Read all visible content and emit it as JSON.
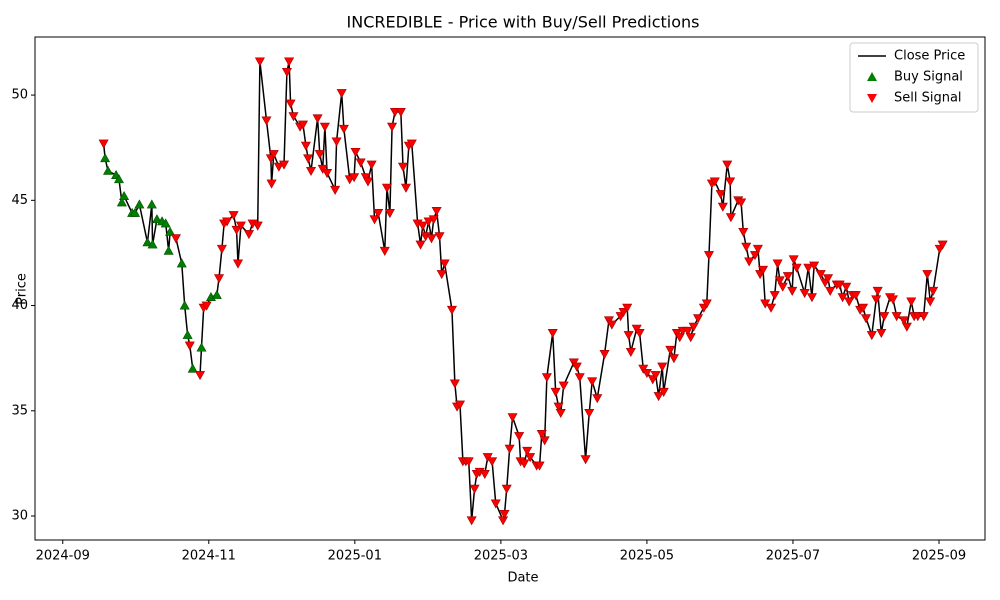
{
  "chart_data": {
    "type": "line",
    "title": "INCREDIBLE - Price with Buy/Sell Predictions",
    "x_label": "Date",
    "y_label": "Price",
    "xlim": [
      -0.38,
      12.63
    ],
    "ylim": [
      28.86,
      52.76
    ],
    "xticks": [
      {
        "value": 0,
        "label": "2024-09"
      },
      {
        "value": 2,
        "label": "2024-11"
      },
      {
        "value": 4,
        "label": "2025-01"
      },
      {
        "value": 6,
        "label": "2025-03"
      },
      {
        "value": 8,
        "label": "2025-05"
      },
      {
        "value": 10,
        "label": "2025-07"
      },
      {
        "value": 12,
        "label": "2025-09"
      }
    ],
    "yticks": [
      30,
      35,
      40,
      45,
      50
    ],
    "grid": false,
    "legend": "upper right",
    "series": [
      {
        "name": "Close Price",
        "color": "#000000",
        "marker": "none",
        "x": [
          0.56,
          0.58,
          0.62,
          0.73,
          0.77,
          0.81,
          0.84,
          0.95,
          0.99,
          1.05,
          1.16,
          1.22,
          1.23,
          1.29,
          1.36,
          1.41,
          1.45,
          1.47,
          1.55,
          1.63,
          1.67,
          1.71,
          1.74,
          1.78,
          1.88,
          1.9,
          1.93,
          1.97,
          2.03,
          2.11,
          2.14,
          2.18,
          2.21,
          2.25,
          2.34,
          2.38,
          2.4,
          2.44,
          2.55,
          2.6,
          2.67,
          2.7,
          2.79,
          2.85,
          2.86,
          2.89,
          2.96,
          3.03,
          3.07,
          3.1,
          3.12,
          3.16,
          3.25,
          3.29,
          3.33,
          3.36,
          3.4,
          3.49,
          3.52,
          3.56,
          3.59,
          3.62,
          3.73,
          3.75,
          3.82,
          3.85,
          3.93,
          3.99,
          4.01,
          4.08,
          4.15,
          4.18,
          4.23,
          4.27,
          4.32,
          4.41,
          4.44,
          4.48,
          4.51,
          4.55,
          4.63,
          4.66,
          4.7,
          4.74,
          4.78,
          4.86,
          4.9,
          4.93,
          4.97,
          5.01,
          5.05,
          5.08,
          5.12,
          5.16,
          5.19,
          5.23,
          5.33,
          5.37,
          5.4,
          5.44,
          5.48,
          5.52,
          5.56,
          5.6,
          5.64,
          5.67,
          5.71,
          5.78,
          5.82,
          5.88,
          5.93,
          6.03,
          6.05,
          6.08,
          6.12,
          6.16,
          6.25,
          6.27,
          6.32,
          6.36,
          6.4,
          6.49,
          6.53,
          6.56,
          6.6,
          6.63,
          6.71,
          6.75,
          6.79,
          6.82,
          6.86,
          7.0,
          7.04,
          7.08,
          7.16,
          7.21,
          7.25,
          7.32,
          7.42,
          7.48,
          7.52,
          7.64,
          7.68,
          7.73,
          7.75,
          7.78,
          7.86,
          7.9,
          7.95,
          8.0,
          8.08,
          8.12,
          8.16,
          8.21,
          8.23,
          8.32,
          8.37,
          8.41,
          8.45,
          8.49,
          8.56,
          8.6,
          8.64,
          8.7,
          8.78,
          8.82,
          8.85,
          8.89,
          8.93,
          9.01,
          9.04,
          9.1,
          9.14,
          9.15,
          9.25,
          9.29,
          9.32,
          9.36,
          9.4,
          9.48,
          9.52,
          9.55,
          9.59,
          9.62,
          9.7,
          9.75,
          9.79,
          9.82,
          9.86,
          9.93,
          9.99,
          10.01,
          10.05,
          10.16,
          10.21,
          10.26,
          10.29,
          10.38,
          10.44,
          10.48,
          10.51,
          10.6,
          10.64,
          10.68,
          10.73,
          10.77,
          10.82,
          10.86,
          10.92,
          10.96,
          11.0,
          11.08,
          11.14,
          11.16,
          11.21,
          11.25,
          11.33,
          11.37,
          11.42,
          11.52,
          11.56,
          11.62,
          11.66,
          11.71,
          11.79,
          11.84,
          11.88,
          11.92,
          12.01,
          12.05
        ],
        "values": [
          47.7,
          47.0,
          46.4,
          46.2,
          46.0,
          44.9,
          45.2,
          44.4,
          44.4,
          44.8,
          43.0,
          44.8,
          42.9,
          44.1,
          44.0,
          43.9,
          42.6,
          43.5,
          43.2,
          42.0,
          40.0,
          38.6,
          38.1,
          37.0,
          36.7,
          38.0,
          39.9,
          40.0,
          40.4,
          40.5,
          41.3,
          42.7,
          43.9,
          44.0,
          44.3,
          43.6,
          42.0,
          43.8,
          43.4,
          43.9,
          43.8,
          51.6,
          48.8,
          47.0,
          45.8,
          47.2,
          46.6,
          46.7,
          51.1,
          51.6,
          49.6,
          49.0,
          48.5,
          48.6,
          47.6,
          47.0,
          46.4,
          48.9,
          47.2,
          46.5,
          48.5,
          46.3,
          45.5,
          47.8,
          50.1,
          48.4,
          46.0,
          46.1,
          47.3,
          46.8,
          46.1,
          45.9,
          46.7,
          44.1,
          44.4,
          42.6,
          45.6,
          44.4,
          48.5,
          49.2,
          49.2,
          46.6,
          45.6,
          47.6,
          47.7,
          43.9,
          42.9,
          43.8,
          43.3,
          44.0,
          43.2,
          44.1,
          44.5,
          43.3,
          41.5,
          42.0,
          39.8,
          36.3,
          35.2,
          35.3,
          32.6,
          32.6,
          32.6,
          29.8,
          31.3,
          32.0,
          32.1,
          32.0,
          32.8,
          32.6,
          30.6,
          29.8,
          30.1,
          31.3,
          33.2,
          34.7,
          33.8,
          32.6,
          32.5,
          33.1,
          32.8,
          32.4,
          32.4,
          33.9,
          33.6,
          36.6,
          38.7,
          35.9,
          35.2,
          34.9,
          36.2,
          37.3,
          37.1,
          36.6,
          32.7,
          34.9,
          36.4,
          35.6,
          37.7,
          39.3,
          39.1,
          39.5,
          39.7,
          39.9,
          38.6,
          37.8,
          38.9,
          38.7,
          37.0,
          36.8,
          36.5,
          36.7,
          35.7,
          37.1,
          35.9,
          37.9,
          37.5,
          38.7,
          38.5,
          38.8,
          38.8,
          38.5,
          39.0,
          39.4,
          39.9,
          40.1,
          42.4,
          45.8,
          45.9,
          45.3,
          44.7,
          46.7,
          45.9,
          44.2,
          45.0,
          44.9,
          43.5,
          42.8,
          42.1,
          42.4,
          42.7,
          41.5,
          41.7,
          40.1,
          39.9,
          40.5,
          42.0,
          41.2,
          40.9,
          41.4,
          40.7,
          42.2,
          41.8,
          40.6,
          41.8,
          40.4,
          41.9,
          41.5,
          41.1,
          41.3,
          40.7,
          41.0,
          41.0,
          40.4,
          40.9,
          40.2,
          40.5,
          40.5,
          39.8,
          39.9,
          39.4,
          38.6,
          40.3,
          40.7,
          38.7,
          39.5,
          40.4,
          40.3,
          39.5,
          39.3,
          39.0,
          40.2,
          39.5,
          39.5,
          39.5,
          41.5,
          40.2,
          40.7,
          42.7,
          42.9
        ]
      },
      {
        "name": "Buy Signal",
        "color": "#008000",
        "marker": "triangle-up",
        "x": [
          0.58,
          0.62,
          0.73,
          0.77,
          0.81,
          0.84,
          0.95,
          0.99,
          1.05,
          1.16,
          1.22,
          1.23,
          1.29,
          1.36,
          1.41,
          1.45,
          1.47,
          1.63,
          1.67,
          1.71,
          1.78,
          1.9,
          2.03,
          2.11
        ],
        "values": [
          47.0,
          46.4,
          46.2,
          46.0,
          44.9,
          45.2,
          44.4,
          44.4,
          44.8,
          43.0,
          44.8,
          42.9,
          44.1,
          44.0,
          43.9,
          42.6,
          43.5,
          42.0,
          40.0,
          38.6,
          37.0,
          38.0,
          40.4,
          40.5
        ]
      },
      {
        "name": "Sell Signal",
        "color": "#ff0000",
        "marker": "triangle-down",
        "x": [
          0.56,
          1.55,
          1.74,
          1.88,
          1.93,
          1.97,
          2.14,
          2.18,
          2.21,
          2.25,
          2.34,
          2.38,
          2.4,
          2.44,
          2.55,
          2.6,
          2.67,
          2.7,
          2.79,
          2.85,
          2.86,
          2.89,
          2.96,
          3.03,
          3.07,
          3.1,
          3.12,
          3.16,
          3.25,
          3.29,
          3.33,
          3.36,
          3.4,
          3.49,
          3.52,
          3.56,
          3.59,
          3.62,
          3.73,
          3.75,
          3.82,
          3.85,
          3.93,
          3.99,
          4.01,
          4.08,
          4.15,
          4.18,
          4.23,
          4.27,
          4.32,
          4.41,
          4.44,
          4.48,
          4.51,
          4.55,
          4.63,
          4.66,
          4.7,
          4.74,
          4.78,
          4.86,
          4.9,
          4.93,
          4.97,
          5.01,
          5.05,
          5.08,
          5.12,
          5.16,
          5.19,
          5.23,
          5.33,
          5.37,
          5.4,
          5.44,
          5.48,
          5.52,
          5.56,
          5.6,
          5.64,
          5.67,
          5.71,
          5.78,
          5.82,
          5.88,
          5.93,
          6.03,
          6.05,
          6.08,
          6.12,
          6.16,
          6.25,
          6.27,
          6.32,
          6.36,
          6.4,
          6.49,
          6.53,
          6.56,
          6.6,
          6.63,
          6.71,
          6.75,
          6.79,
          6.82,
          6.86,
          7.0,
          7.04,
          7.08,
          7.16,
          7.21,
          7.25,
          7.32,
          7.42,
          7.48,
          7.52,
          7.64,
          7.68,
          7.73,
          7.75,
          7.78,
          7.86,
          7.9,
          7.95,
          8.0,
          8.08,
          8.12,
          8.16,
          8.21,
          8.23,
          8.32,
          8.37,
          8.41,
          8.45,
          8.49,
          8.56,
          8.6,
          8.64,
          8.7,
          8.78,
          8.82,
          8.85,
          8.89,
          8.93,
          9.01,
          9.04,
          9.1,
          9.14,
          9.15,
          9.25,
          9.29,
          9.32,
          9.36,
          9.4,
          9.48,
          9.52,
          9.55,
          9.59,
          9.62,
          9.7,
          9.75,
          9.79,
          9.82,
          9.86,
          9.93,
          9.99,
          10.01,
          10.05,
          10.16,
          10.21,
          10.26,
          10.29,
          10.38,
          10.44,
          10.48,
          10.51,
          10.6,
          10.64,
          10.68,
          10.73,
          10.77,
          10.82,
          10.86,
          10.92,
          10.96,
          11.0,
          11.08,
          11.14,
          11.16,
          11.21,
          11.25,
          11.33,
          11.37,
          11.42,
          11.52,
          11.56,
          11.62,
          11.66,
          11.71,
          11.79,
          11.84,
          11.88,
          11.92,
          12.01,
          12.05
        ],
        "values": [
          47.7,
          43.2,
          38.1,
          36.7,
          39.9,
          40.0,
          41.3,
          42.7,
          43.9,
          44.0,
          44.3,
          43.6,
          42.0,
          43.8,
          43.4,
          43.9,
          43.8,
          51.6,
          48.8,
          47.0,
          45.8,
          47.2,
          46.6,
          46.7,
          51.1,
          51.6,
          49.6,
          49.0,
          48.5,
          48.6,
          47.6,
          47.0,
          46.4,
          48.9,
          47.2,
          46.5,
          48.5,
          46.3,
          45.5,
          47.8,
          50.1,
          48.4,
          46.0,
          46.1,
          47.3,
          46.8,
          46.1,
          45.9,
          46.7,
          44.1,
          44.4,
          42.6,
          45.6,
          44.4,
          48.5,
          49.2,
          49.2,
          46.6,
          45.6,
          47.6,
          47.7,
          43.9,
          42.9,
          43.8,
          43.3,
          44.0,
          43.2,
          44.1,
          44.5,
          43.3,
          41.5,
          42.0,
          39.8,
          36.3,
          35.2,
          35.3,
          32.6,
          32.6,
          32.6,
          29.8,
          31.3,
          32.0,
          32.1,
          32.0,
          32.8,
          32.6,
          30.6,
          29.8,
          30.1,
          31.3,
          33.2,
          34.7,
          33.8,
          32.6,
          32.5,
          33.1,
          32.8,
          32.4,
          32.4,
          33.9,
          33.6,
          36.6,
          38.7,
          35.9,
          35.2,
          34.9,
          36.2,
          37.3,
          37.1,
          36.6,
          32.7,
          34.9,
          36.4,
          35.6,
          37.7,
          39.3,
          39.1,
          39.5,
          39.7,
          39.9,
          38.6,
          37.8,
          38.9,
          38.7,
          37.0,
          36.8,
          36.5,
          36.7,
          35.7,
          37.1,
          35.9,
          37.9,
          37.5,
          38.7,
          38.5,
          38.8,
          38.8,
          38.5,
          39.0,
          39.4,
          39.9,
          40.1,
          42.4,
          45.8,
          45.9,
          45.3,
          44.7,
          46.7,
          45.9,
          44.2,
          45.0,
          44.9,
          43.5,
          42.8,
          42.1,
          42.4,
          42.7,
          41.5,
          41.7,
          40.1,
          39.9,
          40.5,
          42.0,
          41.2,
          40.9,
          41.4,
          40.7,
          42.2,
          41.8,
          40.6,
          41.8,
          40.4,
          41.9,
          41.5,
          41.1,
          41.3,
          40.7,
          41.0,
          41.0,
          40.4,
          40.9,
          40.2,
          40.5,
          40.5,
          39.8,
          39.9,
          39.4,
          38.6,
          40.3,
          40.7,
          38.7,
          39.5,
          40.4,
          40.3,
          39.5,
          39.3,
          39.0,
          40.2,
          39.5,
          39.5,
          39.5,
          41.5,
          40.2,
          40.7,
          42.7,
          42.9
        ]
      }
    ]
  }
}
